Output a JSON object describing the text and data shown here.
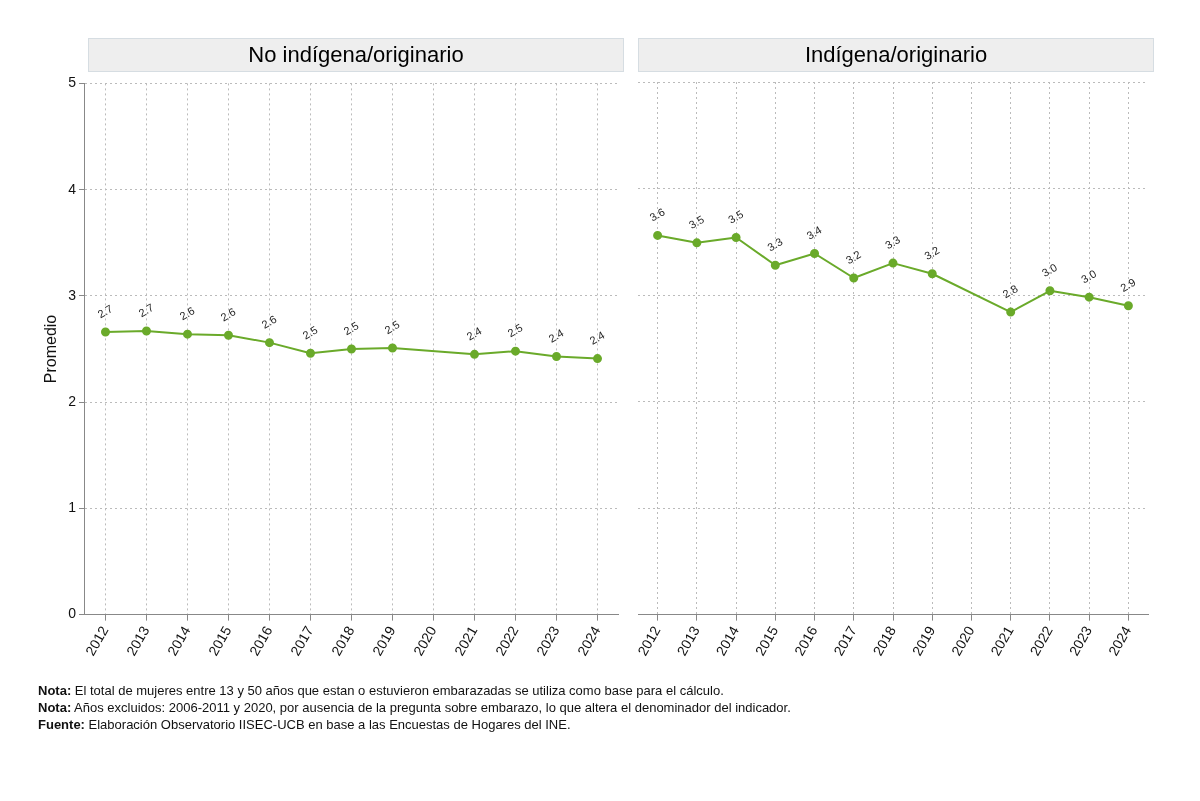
{
  "chart_data": [
    {
      "type": "line",
      "title": "No indígena/originario",
      "ylabel": "Promedio",
      "categories": [
        "2012",
        "2013",
        "2014",
        "2015",
        "2016",
        "2017",
        "2018",
        "2019",
        "2020",
        "2021",
        "2022",
        "2023",
        "2024"
      ],
      "values": [
        2.66,
        2.67,
        2.64,
        2.63,
        2.56,
        2.46,
        2.5,
        2.51,
        null,
        2.45,
        2.48,
        2.43,
        2.41
      ],
      "value_labels": [
        "2.7",
        "2.7",
        "2.6",
        "2.6",
        "2.6",
        "2.5",
        "2.5",
        "2.5",
        null,
        "2.4",
        "2.5",
        "2.4",
        "2.4"
      ],
      "color": "#6aaa2a",
      "ylim": [
        0,
        5
      ],
      "yticks": [
        0,
        1,
        2,
        3,
        4,
        5
      ],
      "grid": true,
      "marker": "circle",
      "line_style": "solid",
      "annotations": [
        "Nota: El total de mujeres entre 13 y 50 años que estan o estuvieron embarazadas se utiliza como base para el cálculo.",
        "Nota: Años excluidos: 2006-2011 y 2020, por ausencia de la pregunta sobre embarazo, lo que altera el denominador del indicador.",
        "Fuente: Elaboración Observatorio IISEC-UCB en base a las Encuestas de Hogares del INE."
      ]
    },
    {
      "type": "line",
      "title": "Indígena/originario",
      "categories": [
        "2012",
        "2013",
        "2014",
        "2015",
        "2016",
        "2017",
        "2018",
        "2019",
        "2020",
        "2021",
        "2022",
        "2023",
        "2024"
      ],
      "values": [
        3.56,
        3.49,
        3.54,
        3.28,
        3.39,
        3.16,
        3.3,
        3.2,
        null,
        2.84,
        3.04,
        2.98,
        2.9
      ],
      "value_labels": [
        "3.6",
        "3.5",
        "3.5",
        "3.3",
        "3.4",
        "3.2",
        "3.3",
        "3.2",
        null,
        "2.8",
        "3.0",
        "3.0",
        "2.9"
      ],
      "color": "#6aaa2a",
      "ylim": [
        0,
        5
      ],
      "yticks": [
        0,
        1,
        2,
        3,
        4,
        5
      ],
      "grid": true,
      "marker": "circle",
      "line_style": "solid",
      "tick_labels": "x"
    }
  ]
}
